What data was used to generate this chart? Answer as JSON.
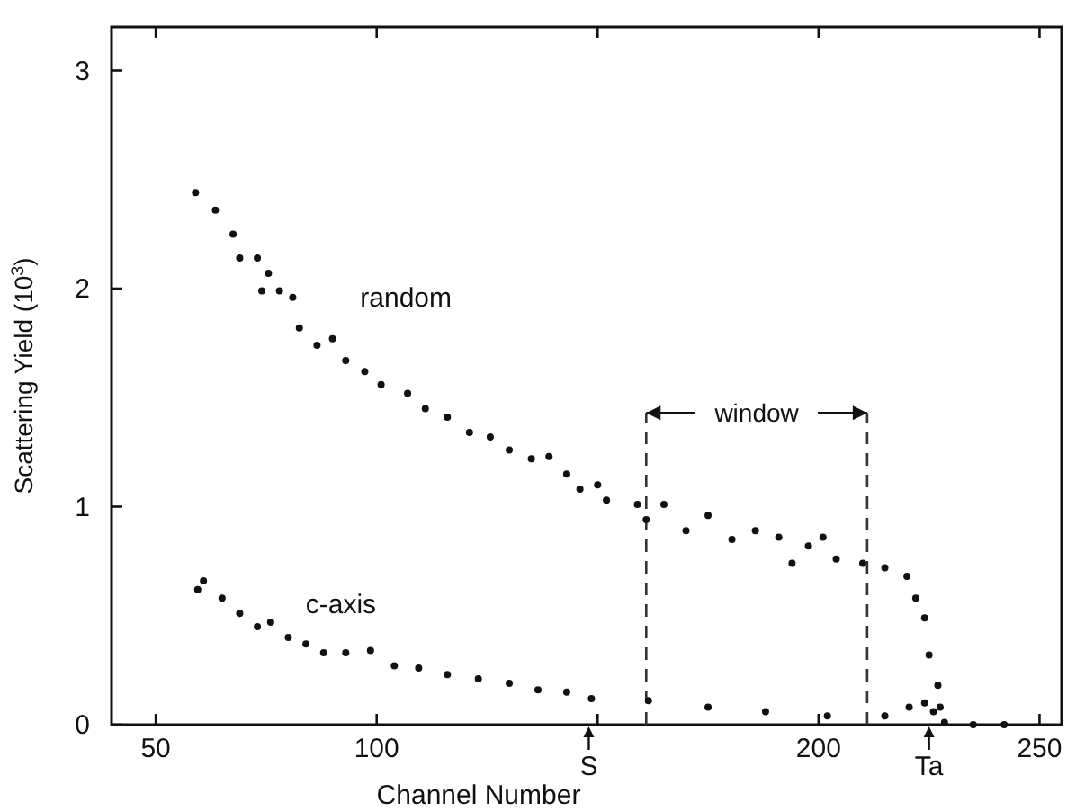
{
  "chart_data": {
    "type": "scatter",
    "xlabel": "Channel Number",
    "ylabel": "Scattering Yield (10$^{3}$)",
    "xlim": [
      40,
      255
    ],
    "ylim": [
      0,
      3.2
    ],
    "xticks": [
      50,
      100,
      {
        "value": 150,
        "label": null
      },
      200,
      250
    ],
    "yticks": [
      0,
      1,
      2,
      3
    ],
    "grid": false,
    "marker": "circle",
    "series": [
      {
        "name": "random",
        "color": "#111111",
        "x": [
          59,
          63.5,
          67.5,
          69,
          73,
          74,
          75.5,
          78,
          81,
          82.5,
          86.5,
          90,
          93,
          97.3,
          101,
          107,
          111,
          116,
          121,
          125.7,
          130,
          135,
          139,
          143,
          146,
          150,
          152,
          159,
          161,
          165,
          170,
          175,
          180.4,
          185.7,
          191,
          194,
          197.7,
          201,
          204,
          210,
          215,
          220,
          222,
          224,
          225,
          227,
          227.5
        ],
        "values": [
          2.44,
          2.36,
          2.25,
          2.14,
          2.14,
          1.99,
          2.07,
          1.99,
          1.96,
          1.82,
          1.74,
          1.77,
          1.67,
          1.62,
          1.56,
          1.52,
          1.45,
          1.41,
          1.34,
          1.32,
          1.26,
          1.22,
          1.23,
          1.15,
          1.08,
          1.1,
          1.03,
          1.01,
          0.94,
          1.01,
          0.89,
          0.96,
          0.85,
          0.89,
          0.86,
          0.74,
          0.82,
          0.86,
          0.76,
          0.74,
          0.72,
          0.68,
          0.58,
          0.49,
          0.32,
          0.18,
          0.08
        ]
      },
      {
        "name": "c-axis",
        "color": "#111111",
        "x": [
          59.5,
          60.8,
          65,
          69,
          73,
          76,
          80,
          84,
          88,
          93,
          98.6,
          104,
          109.5,
          116,
          123,
          130,
          136.5,
          143,
          148.6,
          161.5,
          175,
          188,
          202,
          215,
          220.5,
          224,
          226,
          228.5,
          235,
          242
        ],
        "values": [
          0.62,
          0.66,
          0.58,
          0.51,
          0.45,
          0.47,
          0.4,
          0.37,
          0.33,
          0.33,
          0.34,
          0.27,
          0.26,
          0.23,
          0.21,
          0.19,
          0.16,
          0.15,
          0.12,
          0.11,
          0.08,
          0.06,
          0.04,
          0.04,
          0.08,
          0.1,
          0.06,
          0.01,
          0,
          0
        ]
      }
    ],
    "ref_lines": [
      {
        "axis": "x",
        "value": 161,
        "label": "window",
        "line_style": "dashed",
        "color": "#333333"
      },
      {
        "axis": "x",
        "value": 211,
        "line_style": "dashed",
        "color": "#333333"
      }
    ],
    "annotations": [
      {
        "text": "S",
        "x": 148
      },
      {
        "text": "Ta",
        "x": 225
      }
    ]
  }
}
